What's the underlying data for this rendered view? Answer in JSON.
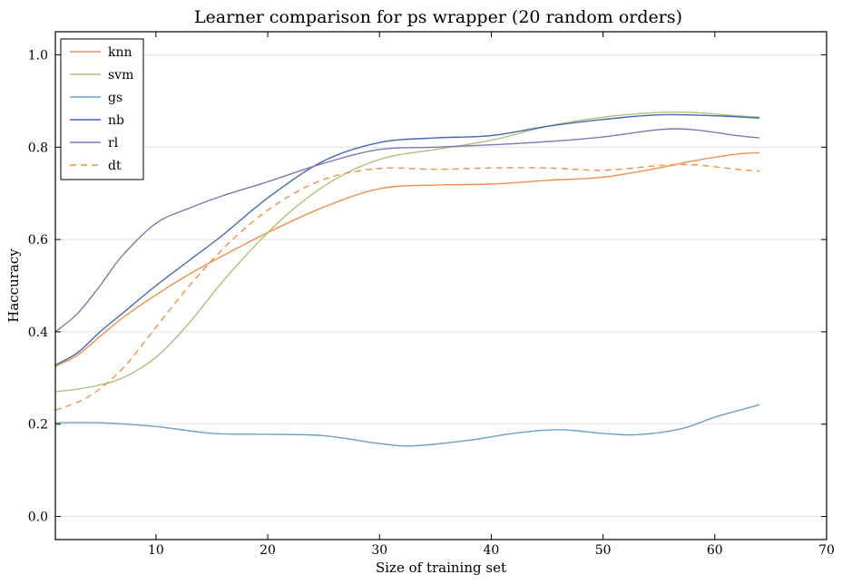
{
  "chart_data": {
    "type": "line",
    "title": "Learner comparison for ps wrapper (20 random orders)",
    "xlabel": "Size of training set",
    "ylabel": "Haccuracy",
    "xlim": [
      1,
      70
    ],
    "ylim": [
      -0.05,
      1.05
    ],
    "xticks": [
      10,
      20,
      30,
      40,
      50,
      60,
      70
    ],
    "yticks": [
      0.0,
      0.2,
      0.4,
      0.6,
      0.8,
      1.0
    ],
    "xtick_labels": [
      "10",
      "20",
      "30",
      "40",
      "50",
      "60",
      "70"
    ],
    "ytick_labels": [
      "0.0",
      "0.2",
      "0.4",
      "0.6",
      "0.8",
      "1.0"
    ],
    "grid": "horizontal",
    "legend_position": "top-left",
    "series": [
      {
        "name": "knn",
        "color": "#f0904a",
        "dash": "solid",
        "x": [
          1,
          3,
          5,
          7,
          10,
          13,
          16,
          20,
          25,
          30,
          35,
          40,
          45,
          50,
          55,
          58,
          62,
          64
        ],
        "y": [
          0.325,
          0.35,
          0.39,
          0.43,
          0.48,
          0.525,
          0.565,
          0.615,
          0.67,
          0.71,
          0.718,
          0.72,
          0.728,
          0.735,
          0.755,
          0.77,
          0.785,
          0.788
        ]
      },
      {
        "name": "svm",
        "color": "#b2be7a",
        "dash": "solid",
        "x": [
          1,
          4,
          7,
          10,
          13,
          16,
          19,
          22,
          25,
          28,
          31,
          35,
          40,
          45,
          50,
          55,
          58,
          62,
          64
        ],
        "y": [
          0.27,
          0.28,
          0.3,
          0.345,
          0.42,
          0.51,
          0.59,
          0.66,
          0.715,
          0.755,
          0.78,
          0.795,
          0.815,
          0.845,
          0.865,
          0.875,
          0.875,
          0.868,
          0.865
        ]
      },
      {
        "name": "gs",
        "color": "#6e9fc6",
        "dash": "solid",
        "x": [
          1,
          5,
          10,
          15,
          20,
          25,
          30,
          33,
          38,
          42,
          46,
          50,
          53,
          57,
          60,
          64
        ],
        "y": [
          0.203,
          0.203,
          0.195,
          0.18,
          0.178,
          0.175,
          0.158,
          0.153,
          0.165,
          0.18,
          0.188,
          0.18,
          0.177,
          0.19,
          0.215,
          0.242
        ]
      },
      {
        "name": "nb",
        "color": "#4468b4",
        "dash": "solid",
        "x": [
          1,
          3,
          5,
          7,
          10,
          13,
          16,
          20,
          25,
          30,
          35,
          40,
          45,
          50,
          55,
          60,
          64
        ],
        "y": [
          0.328,
          0.355,
          0.4,
          0.44,
          0.5,
          0.555,
          0.61,
          0.69,
          0.77,
          0.81,
          0.82,
          0.825,
          0.845,
          0.86,
          0.87,
          0.868,
          0.863
        ]
      },
      {
        "name": "rl",
        "color": "#8276b4",
        "dash": "solid",
        "x": [
          1,
          3,
          5,
          7,
          10,
          13,
          16,
          20,
          25,
          30,
          35,
          40,
          45,
          50,
          55,
          58,
          62,
          64
        ],
        "y": [
          0.4,
          0.44,
          0.5,
          0.565,
          0.635,
          0.668,
          0.695,
          0.725,
          0.765,
          0.795,
          0.8,
          0.805,
          0.812,
          0.822,
          0.838,
          0.838,
          0.825,
          0.82
        ]
      },
      {
        "name": "dt",
        "color": "#f0904a",
        "dash": "dashed",
        "x": [
          1,
          4,
          7,
          10,
          13,
          16,
          19,
          22,
          25,
          28,
          31,
          35,
          40,
          45,
          50,
          55,
          58,
          62,
          64
        ],
        "y": [
          0.23,
          0.26,
          0.32,
          0.41,
          0.5,
          0.58,
          0.645,
          0.695,
          0.73,
          0.748,
          0.755,
          0.752,
          0.755,
          0.755,
          0.75,
          0.76,
          0.762,
          0.752,
          0.748
        ]
      }
    ]
  }
}
